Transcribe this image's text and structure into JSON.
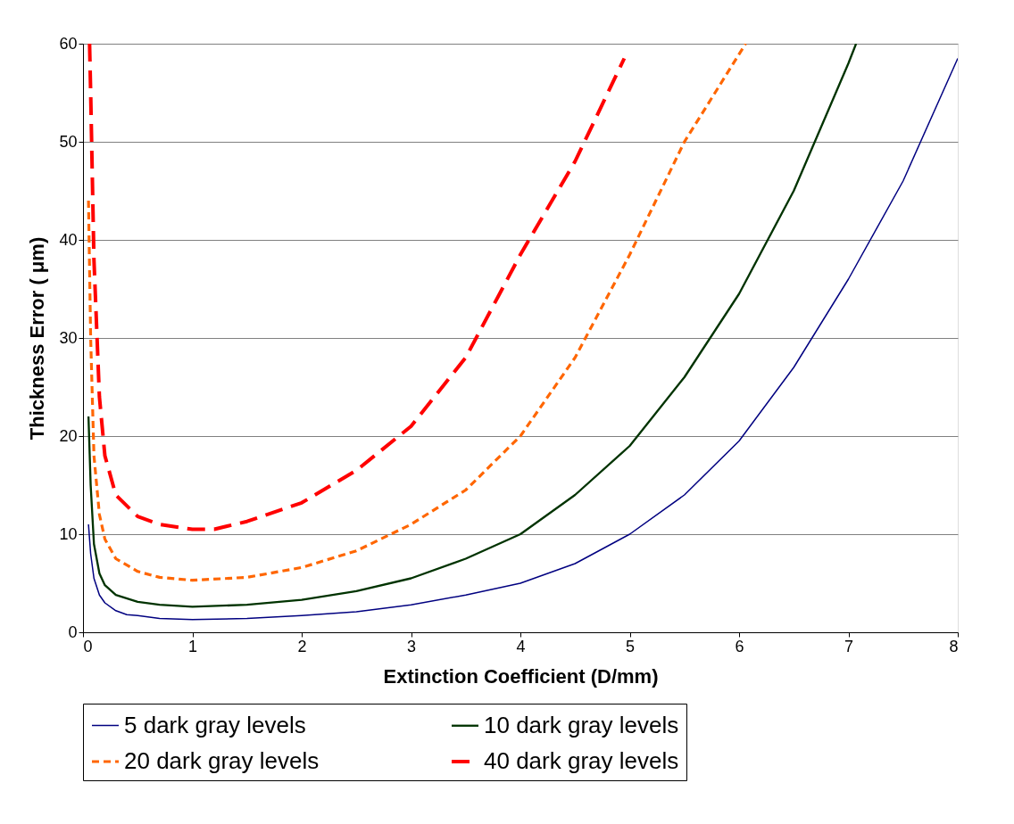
{
  "chart_data": {
    "type": "line",
    "xlabel": "Extinction Coefficient (D/mm)",
    "ylabel": "Thickness Error ( μm)",
    "xlim": [
      0,
      8
    ],
    "xticks": [
      0,
      1,
      2,
      3,
      4,
      5,
      6,
      7,
      8
    ],
    "ylim": [
      0,
      60
    ],
    "yticks": [
      0,
      10,
      20,
      30,
      40,
      50,
      60
    ],
    "grid": "y",
    "legend": "bottom",
    "marker": "none",
    "series": [
      {
        "name": "5 dark gray levels",
        "color": "#000080",
        "line_style": "solid",
        "x": [
          0.05,
          0.07,
          0.1,
          0.15,
          0.2,
          0.3,
          0.4,
          0.5,
          0.7,
          1,
          1.5,
          2,
          2.5,
          3,
          3.5,
          4,
          4.5,
          5,
          5.5,
          6,
          6.5,
          7,
          7.5,
          8
        ],
        "values": [
          11,
          8,
          5.5,
          3.8,
          3,
          2.2,
          1.8,
          1.7,
          1.4,
          1.3,
          1.4,
          1.7,
          2.1,
          2.8,
          3.8,
          5,
          7,
          10,
          14,
          19.5,
          27,
          36,
          46,
          58.5
        ]
      },
      {
        "name": "10 dark gray levels",
        "color": "#003300",
        "line_style": "solid",
        "x": [
          0.05,
          0.07,
          0.1,
          0.15,
          0.2,
          0.3,
          0.5,
          0.7,
          1,
          1.5,
          2,
          2.5,
          3,
          3.5,
          4,
          4.5,
          5,
          5.5,
          6,
          6.5,
          7,
          7.07
        ],
        "values": [
          22,
          15,
          9,
          6,
          4.8,
          3.8,
          3.1,
          2.8,
          2.6,
          2.8,
          3.3,
          4.2,
          5.5,
          7.5,
          10,
          14,
          19,
          26,
          34.5,
          45,
          58,
          60
        ]
      },
      {
        "name": "20 dark gray levels",
        "color": "#ff6600",
        "line_style": "dashed",
        "x": [
          0.05,
          0.07,
          0.1,
          0.15,
          0.2,
          0.3,
          0.5,
          0.7,
          1,
          1.5,
          2,
          2.5,
          3,
          3.5,
          4,
          4.5,
          5,
          5.5,
          6.06
        ],
        "values": [
          44,
          30,
          18,
          12,
          9.5,
          7.5,
          6.2,
          5.6,
          5.3,
          5.6,
          6.6,
          8.3,
          11,
          14.5,
          20,
          28,
          38.5,
          50,
          60
        ]
      },
      {
        "name": "40 dark gray levels",
        "color": "#ff0000",
        "line_style": "dashed",
        "x": [
          0.06,
          0.07,
          0.1,
          0.15,
          0.2,
          0.3,
          0.5,
          0.7,
          1,
          1.2,
          1.5,
          2,
          2.5,
          3,
          3.5,
          4,
          4.5,
          4.95
        ],
        "values": [
          60,
          55,
          38,
          24,
          18,
          14,
          11.8,
          11,
          10.5,
          10.5,
          11.3,
          13.2,
          16.5,
          21,
          28,
          38.5,
          48,
          58.5
        ]
      }
    ]
  }
}
